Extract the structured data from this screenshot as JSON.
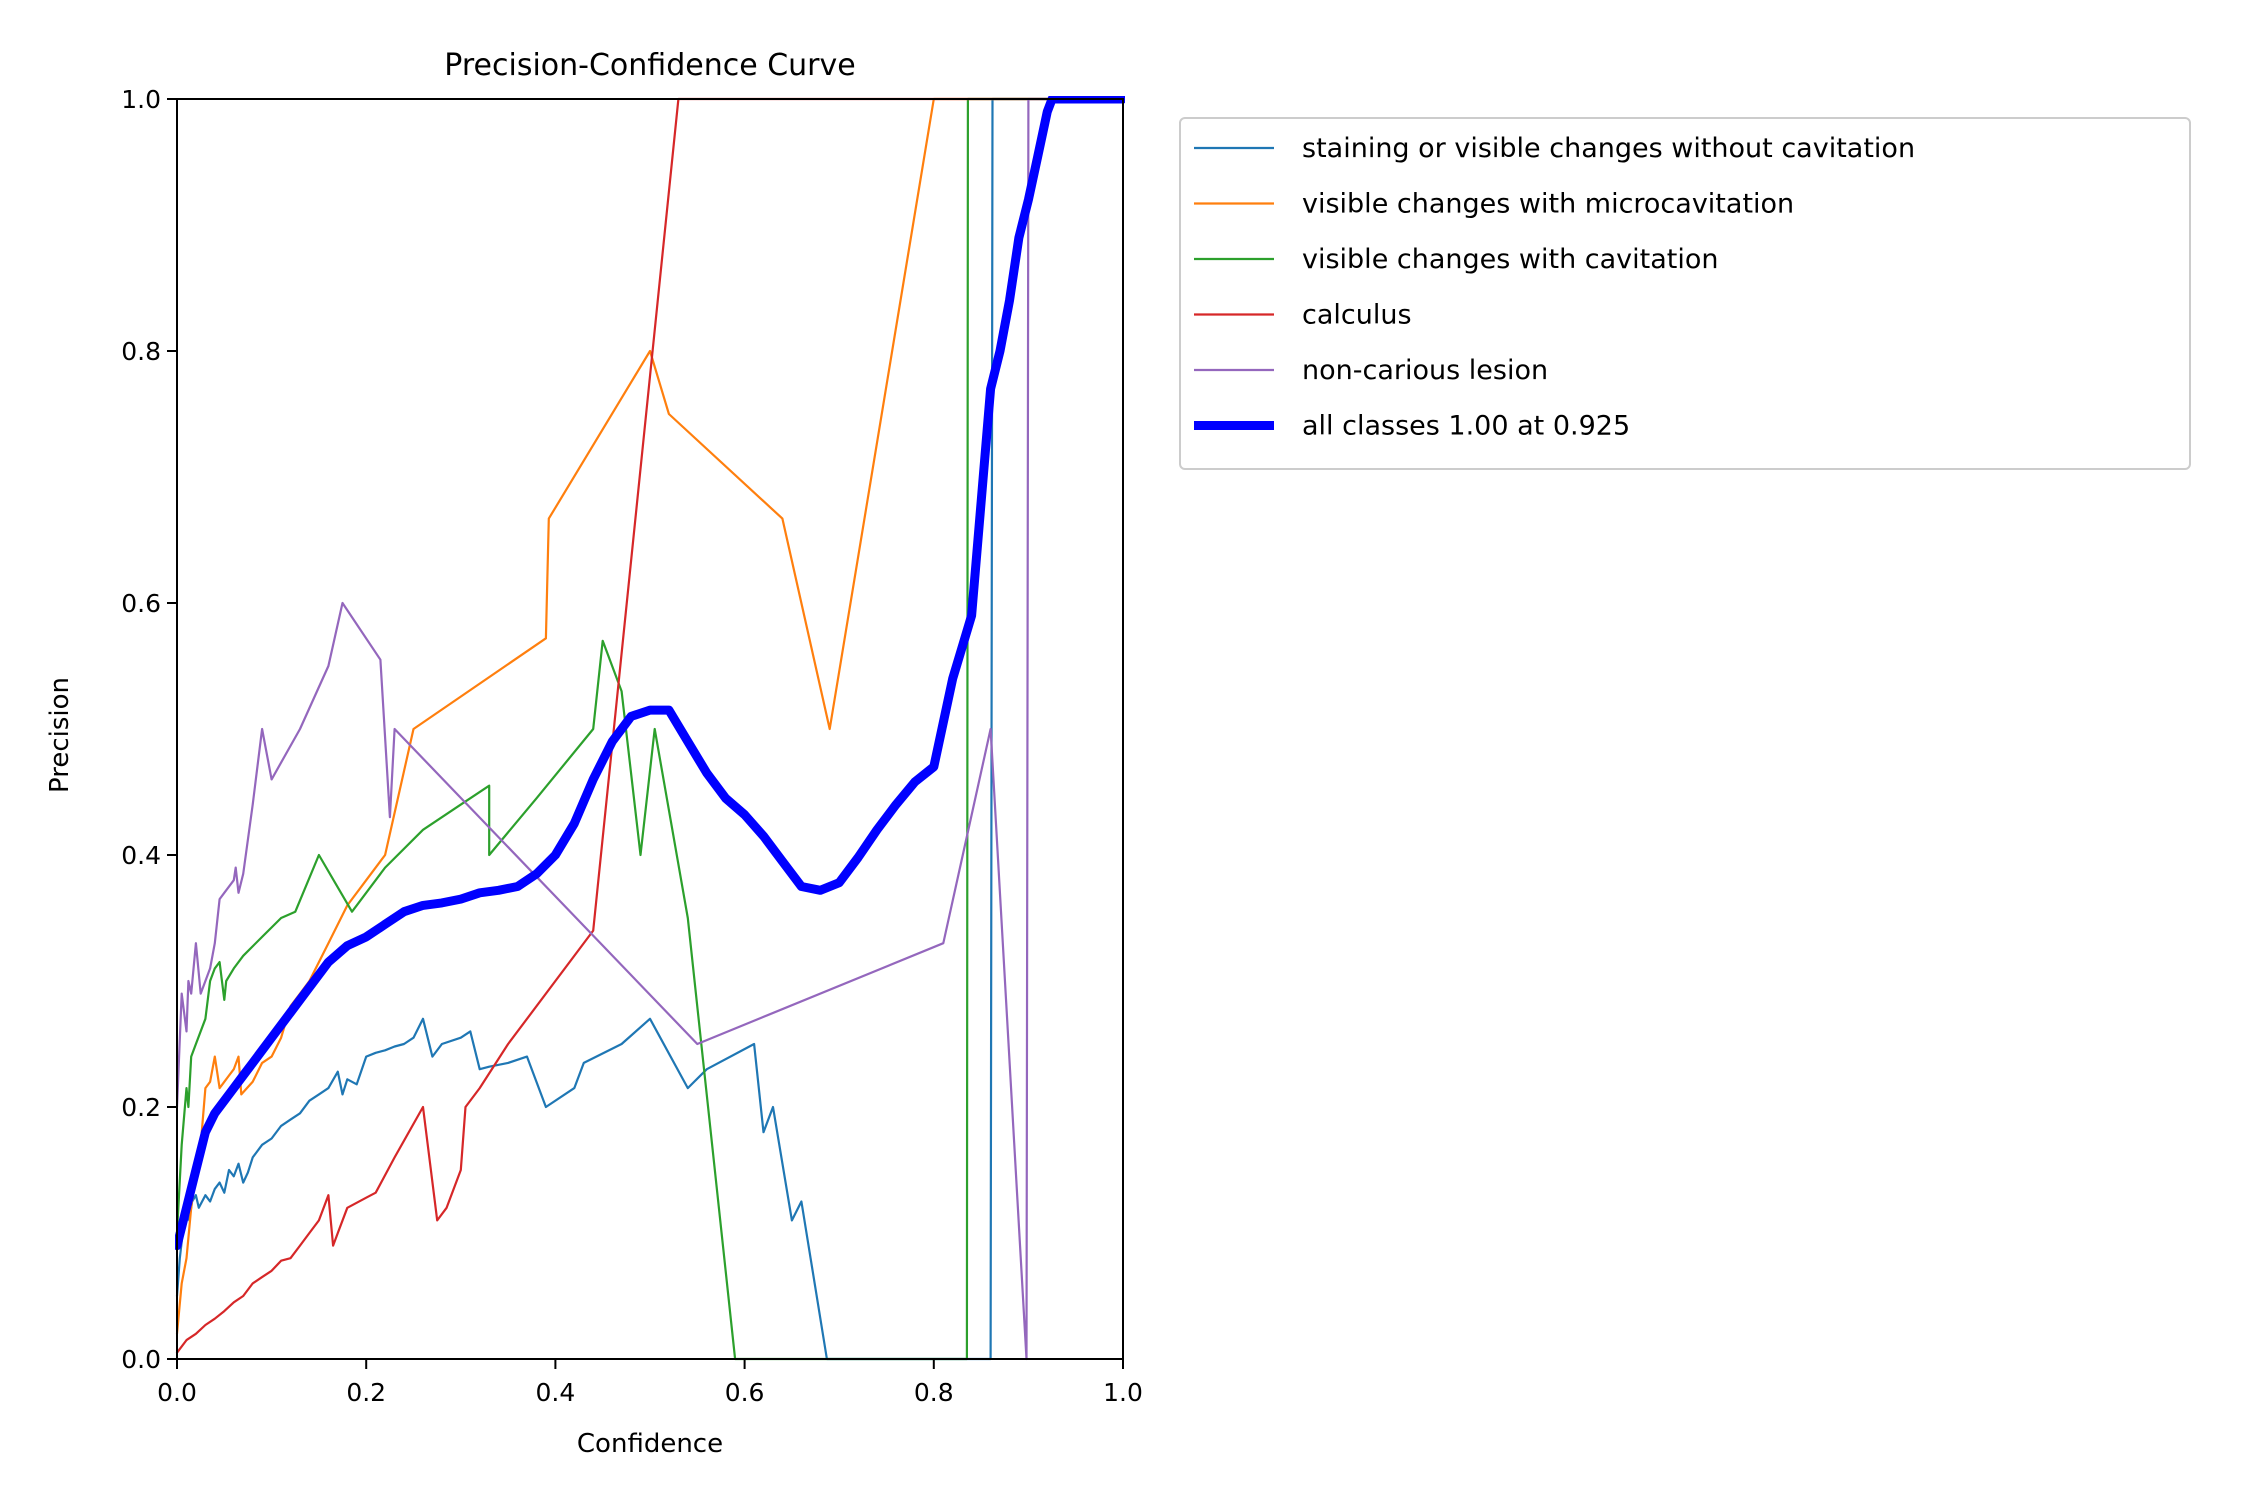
{
  "chart_data": {
    "type": "line",
    "title": "Precision-Confidence Curve",
    "xlabel": "Confidence",
    "ylabel": "Precision",
    "xlim": [
      0,
      1
    ],
    "ylim": [
      0,
      1
    ],
    "xticks": [
      "0.0",
      "0.2",
      "0.4",
      "0.6",
      "0.8",
      "1.0"
    ],
    "yticks": [
      "0.0",
      "0.2",
      "0.4",
      "0.6",
      "0.8",
      "1.0"
    ],
    "grid": false,
    "legend_position": "outside top-right",
    "series": [
      {
        "name": "staining or visible changes without cavitation",
        "color": "#1f77b4",
        "points": [
          [
            0.0,
            0.05
          ],
          [
            0.003,
            0.08
          ],
          [
            0.006,
            0.1
          ],
          [
            0.01,
            0.12
          ],
          [
            0.013,
            0.11
          ],
          [
            0.016,
            0.125
          ],
          [
            0.02,
            0.13
          ],
          [
            0.023,
            0.12
          ],
          [
            0.03,
            0.13
          ],
          [
            0.035,
            0.125
          ],
          [
            0.04,
            0.135
          ],
          [
            0.045,
            0.14
          ],
          [
            0.05,
            0.132
          ],
          [
            0.055,
            0.15
          ],
          [
            0.06,
            0.145
          ],
          [
            0.065,
            0.155
          ],
          [
            0.07,
            0.14
          ],
          [
            0.075,
            0.148
          ],
          [
            0.08,
            0.16
          ],
          [
            0.09,
            0.17
          ],
          [
            0.1,
            0.175
          ],
          [
            0.11,
            0.185
          ],
          [
            0.12,
            0.19
          ],
          [
            0.13,
            0.195
          ],
          [
            0.14,
            0.205
          ],
          [
            0.15,
            0.21
          ],
          [
            0.16,
            0.215
          ],
          [
            0.17,
            0.228
          ],
          [
            0.175,
            0.21
          ],
          [
            0.18,
            0.222
          ],
          [
            0.19,
            0.218
          ],
          [
            0.2,
            0.24
          ],
          [
            0.21,
            0.243
          ],
          [
            0.22,
            0.245
          ],
          [
            0.23,
            0.248
          ],
          [
            0.24,
            0.25
          ],
          [
            0.25,
            0.255
          ],
          [
            0.26,
            0.27
          ],
          [
            0.27,
            0.24
          ],
          [
            0.28,
            0.25
          ],
          [
            0.3,
            0.255
          ],
          [
            0.31,
            0.26
          ],
          [
            0.32,
            0.23
          ],
          [
            0.33,
            0.232
          ],
          [
            0.35,
            0.235
          ],
          [
            0.37,
            0.24
          ],
          [
            0.39,
            0.2
          ],
          [
            0.42,
            0.215
          ],
          [
            0.43,
            0.235
          ],
          [
            0.47,
            0.25
          ],
          [
            0.5,
            0.27
          ],
          [
            0.54,
            0.215
          ],
          [
            0.56,
            0.23
          ],
          [
            0.61,
            0.25
          ],
          [
            0.62,
            0.18
          ],
          [
            0.63,
            0.2
          ],
          [
            0.65,
            0.11
          ],
          [
            0.66,
            0.125
          ],
          [
            0.687,
            0.0
          ],
          [
            0.86,
            0.0
          ],
          [
            0.862,
            1.0
          ],
          [
            1.0,
            1.0
          ]
        ]
      },
      {
        "name": "visible changes with microcavitation",
        "color": "#ff7f0e",
        "points": [
          [
            0.0,
            0.02
          ],
          [
            0.005,
            0.06
          ],
          [
            0.01,
            0.08
          ],
          [
            0.015,
            0.12
          ],
          [
            0.02,
            0.15
          ],
          [
            0.025,
            0.17
          ],
          [
            0.03,
            0.215
          ],
          [
            0.035,
            0.22
          ],
          [
            0.04,
            0.24
          ],
          [
            0.045,
            0.215
          ],
          [
            0.05,
            0.22
          ],
          [
            0.055,
            0.225
          ],
          [
            0.06,
            0.23
          ],
          [
            0.065,
            0.24
          ],
          [
            0.068,
            0.21
          ],
          [
            0.08,
            0.22
          ],
          [
            0.09,
            0.235
          ],
          [
            0.1,
            0.24
          ],
          [
            0.11,
            0.255
          ],
          [
            0.12,
            0.28
          ],
          [
            0.13,
            0.29
          ],
          [
            0.14,
            0.3
          ],
          [
            0.15,
            0.315
          ],
          [
            0.16,
            0.33
          ],
          [
            0.18,
            0.36
          ],
          [
            0.2,
            0.38
          ],
          [
            0.22,
            0.4
          ],
          [
            0.25,
            0.5
          ],
          [
            0.39,
            0.572
          ],
          [
            0.393,
            0.667
          ],
          [
            0.5,
            0.8
          ],
          [
            0.52,
            0.75
          ],
          [
            0.64,
            0.667
          ],
          [
            0.69,
            0.5
          ],
          [
            0.8,
            1.0
          ],
          [
            1.0,
            1.0
          ]
        ]
      },
      {
        "name": "visible changes with cavitation",
        "color": "#2ca02c",
        "points": [
          [
            0.0,
            0.1
          ],
          [
            0.005,
            0.17
          ],
          [
            0.01,
            0.215
          ],
          [
            0.012,
            0.2
          ],
          [
            0.015,
            0.24
          ],
          [
            0.02,
            0.25
          ],
          [
            0.03,
            0.27
          ],
          [
            0.035,
            0.3
          ],
          [
            0.04,
            0.31
          ],
          [
            0.045,
            0.315
          ],
          [
            0.05,
            0.285
          ],
          [
            0.052,
            0.3
          ],
          [
            0.06,
            0.31
          ],
          [
            0.07,
            0.32
          ],
          [
            0.09,
            0.335
          ],
          [
            0.11,
            0.35
          ],
          [
            0.125,
            0.355
          ],
          [
            0.15,
            0.4
          ],
          [
            0.185,
            0.355
          ],
          [
            0.22,
            0.39
          ],
          [
            0.26,
            0.42
          ],
          [
            0.3,
            0.44
          ],
          [
            0.33,
            0.455
          ],
          [
            0.33,
            0.4
          ],
          [
            0.38,
            0.445
          ],
          [
            0.44,
            0.5
          ],
          [
            0.45,
            0.57
          ],
          [
            0.47,
            0.53
          ],
          [
            0.49,
            0.4
          ],
          [
            0.505,
            0.5
          ],
          [
            0.54,
            0.35
          ],
          [
            0.59,
            0.0
          ],
          [
            0.835,
            0.0
          ],
          [
            0.836,
            1.0
          ],
          [
            1.0,
            1.0
          ]
        ]
      },
      {
        "name": "calculus",
        "color": "#d62728",
        "points": [
          [
            0.0,
            0.005
          ],
          [
            0.01,
            0.015
          ],
          [
            0.02,
            0.02
          ],
          [
            0.03,
            0.027
          ],
          [
            0.04,
            0.032
          ],
          [
            0.05,
            0.038
          ],
          [
            0.06,
            0.045
          ],
          [
            0.07,
            0.05
          ],
          [
            0.08,
            0.06
          ],
          [
            0.09,
            0.065
          ],
          [
            0.1,
            0.07
          ],
          [
            0.11,
            0.078
          ],
          [
            0.12,
            0.08
          ],
          [
            0.13,
            0.09
          ],
          [
            0.14,
            0.1
          ],
          [
            0.15,
            0.11
          ],
          [
            0.16,
            0.13
          ],
          [
            0.165,
            0.09
          ],
          [
            0.17,
            0.1
          ],
          [
            0.18,
            0.12
          ],
          [
            0.2,
            0.128
          ],
          [
            0.21,
            0.132
          ],
          [
            0.23,
            0.16
          ],
          [
            0.26,
            0.2
          ],
          [
            0.275,
            0.11
          ],
          [
            0.285,
            0.12
          ],
          [
            0.3,
            0.15
          ],
          [
            0.305,
            0.2
          ],
          [
            0.32,
            0.215
          ],
          [
            0.35,
            0.25
          ],
          [
            0.44,
            0.34
          ],
          [
            0.53,
            1.0
          ],
          [
            1.0,
            1.0
          ]
        ]
      },
      {
        "name": "non-carious lesion",
        "color": "#9467bd",
        "points": [
          [
            0.0,
            0.2
          ],
          [
            0.005,
            0.29
          ],
          [
            0.01,
            0.26
          ],
          [
            0.012,
            0.3
          ],
          [
            0.015,
            0.29
          ],
          [
            0.02,
            0.33
          ],
          [
            0.025,
            0.29
          ],
          [
            0.03,
            0.3
          ],
          [
            0.035,
            0.31
          ],
          [
            0.04,
            0.33
          ],
          [
            0.045,
            0.365
          ],
          [
            0.05,
            0.37
          ],
          [
            0.06,
            0.38
          ],
          [
            0.062,
            0.39
          ],
          [
            0.065,
            0.37
          ],
          [
            0.07,
            0.385
          ],
          [
            0.08,
            0.44
          ],
          [
            0.09,
            0.5
          ],
          [
            0.1,
            0.46
          ],
          [
            0.13,
            0.5
          ],
          [
            0.16,
            0.55
          ],
          [
            0.175,
            0.6
          ],
          [
            0.215,
            0.555
          ],
          [
            0.225,
            0.43
          ],
          [
            0.23,
            0.5
          ],
          [
            0.55,
            0.25
          ],
          [
            0.81,
            0.33
          ],
          [
            0.86,
            0.5
          ],
          [
            0.898,
            0.0
          ],
          [
            0.9,
            1.0
          ],
          [
            1.0,
            1.0
          ]
        ]
      },
      {
        "name": "all classes 1.00 at 0.925",
        "color": "#0000ff",
        "thick": true,
        "points": [
          [
            0.0,
            0.09
          ],
          [
            0.01,
            0.12
          ],
          [
            0.02,
            0.15
          ],
          [
            0.03,
            0.18
          ],
          [
            0.04,
            0.195
          ],
          [
            0.05,
            0.205
          ],
          [
            0.06,
            0.215
          ],
          [
            0.07,
            0.225
          ],
          [
            0.08,
            0.235
          ],
          [
            0.1,
            0.255
          ],
          [
            0.12,
            0.275
          ],
          [
            0.14,
            0.295
          ],
          [
            0.16,
            0.315
          ],
          [
            0.18,
            0.328
          ],
          [
            0.2,
            0.335
          ],
          [
            0.22,
            0.345
          ],
          [
            0.24,
            0.355
          ],
          [
            0.26,
            0.36
          ],
          [
            0.28,
            0.362
          ],
          [
            0.3,
            0.365
          ],
          [
            0.32,
            0.37
          ],
          [
            0.34,
            0.372
          ],
          [
            0.36,
            0.375
          ],
          [
            0.38,
            0.385
          ],
          [
            0.4,
            0.4
          ],
          [
            0.42,
            0.425
          ],
          [
            0.44,
            0.46
          ],
          [
            0.46,
            0.49
          ],
          [
            0.48,
            0.51
          ],
          [
            0.5,
            0.515
          ],
          [
            0.52,
            0.515
          ],
          [
            0.54,
            0.49
          ],
          [
            0.56,
            0.465
          ],
          [
            0.58,
            0.445
          ],
          [
            0.6,
            0.432
          ],
          [
            0.62,
            0.415
          ],
          [
            0.64,
            0.395
          ],
          [
            0.66,
            0.375
          ],
          [
            0.68,
            0.372
          ],
          [
            0.7,
            0.378
          ],
          [
            0.72,
            0.398
          ],
          [
            0.74,
            0.42
          ],
          [
            0.76,
            0.44
          ],
          [
            0.78,
            0.458
          ],
          [
            0.8,
            0.47
          ],
          [
            0.82,
            0.54
          ],
          [
            0.84,
            0.59
          ],
          [
            0.85,
            0.68
          ],
          [
            0.86,
            0.77
          ],
          [
            0.87,
            0.8
          ],
          [
            0.88,
            0.84
          ],
          [
            0.89,
            0.89
          ],
          [
            0.9,
            0.92
          ],
          [
            0.91,
            0.955
          ],
          [
            0.92,
            0.99
          ],
          [
            0.925,
            1.0
          ],
          [
            1.0,
            1.0
          ]
        ]
      }
    ]
  }
}
